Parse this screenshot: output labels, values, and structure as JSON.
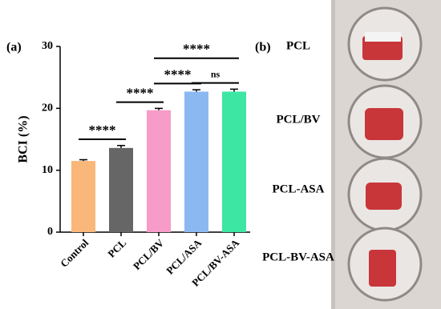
{
  "chart_data": {
    "type": "bar",
    "ylabel": "BCI (%)",
    "categories": [
      "Control",
      "PCL",
      "PCL/BV",
      "PCL/ASA",
      "PCL/BV-ASA"
    ],
    "values": [
      11.5,
      13.6,
      19.7,
      22.7,
      22.7
    ],
    "errors": [
      0.2,
      0.4,
      0.3,
      0.3,
      0.4
    ],
    "colors": [
      "#f9b77a",
      "#666666",
      "#f79cc9",
      "#8cb8f2",
      "#3de6a3"
    ],
    "ylim": [
      0,
      30
    ],
    "yticks": [
      0,
      10,
      20,
      30
    ],
    "significance": [
      {
        "from": 0,
        "to": 1,
        "label": "****"
      },
      {
        "from": 1,
        "to": 2,
        "label": "****"
      },
      {
        "from": 2,
        "to": 3,
        "label": "****"
      },
      {
        "from": 3,
        "to": 4,
        "label": "ns"
      },
      {
        "from": 2,
        "to": 4,
        "label": "****"
      }
    ]
  },
  "panel_labels": [
    "(a)",
    "(b)"
  ],
  "photo_labels": [
    "PCL",
    "PCL/BV",
    "PCL-ASA",
    "PCL-BV-ASA"
  ]
}
